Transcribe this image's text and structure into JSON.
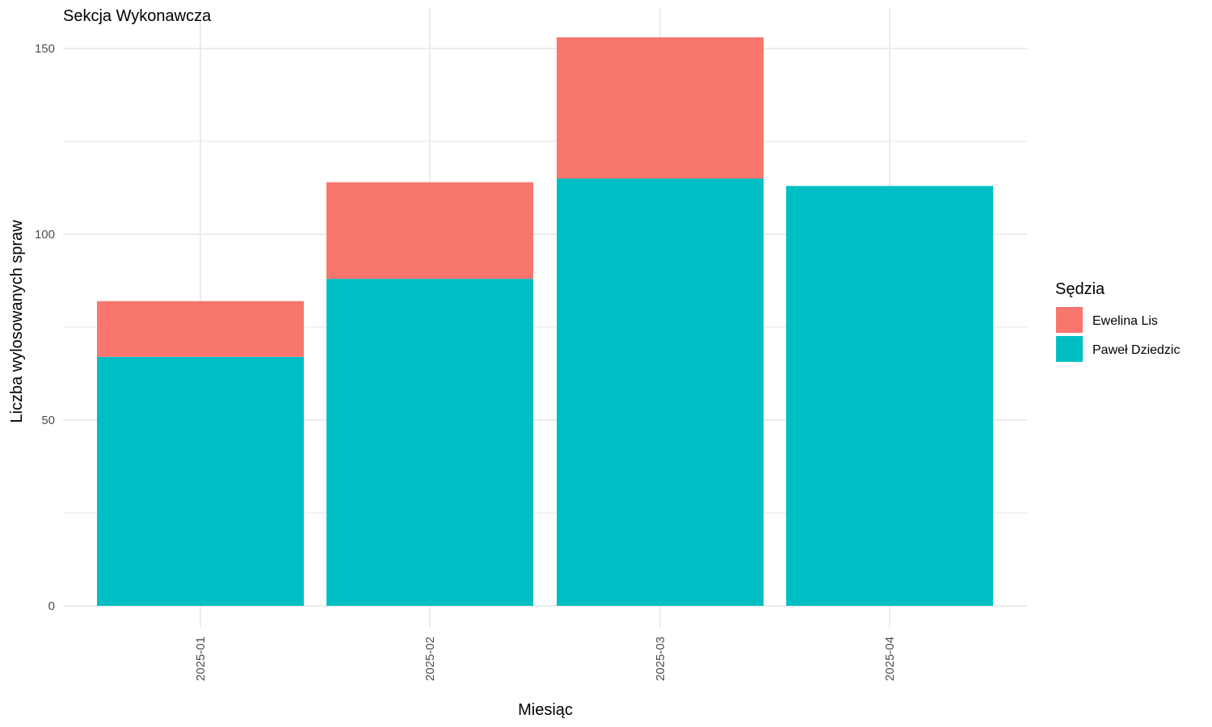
{
  "chart_data": {
    "type": "bar",
    "stacked": true,
    "title": "Sekcja Wykonawcza",
    "xlabel": "Miesiąc",
    "ylabel": "Liczba wylosowanych spraw",
    "categories": [
      "2025-01",
      "2025-02",
      "2025-03",
      "2025-04"
    ],
    "ylim": [
      0,
      160
    ],
    "yticks": [
      0,
      50,
      100,
      150
    ],
    "grid": true,
    "x_tick_rotation": "vertical",
    "legend": {
      "title": "Sędzia",
      "position": "right"
    },
    "series": [
      {
        "name": "Paweł Dziedzic",
        "color": "#00BFC4",
        "values": [
          67,
          88,
          115,
          113
        ]
      },
      {
        "name": "Ewelina Lis",
        "color": "#F8766D",
        "values": [
          15,
          26,
          38,
          0
        ]
      }
    ],
    "legend_order": [
      "Ewelina Lis",
      "Paweł Dziedzic"
    ]
  }
}
